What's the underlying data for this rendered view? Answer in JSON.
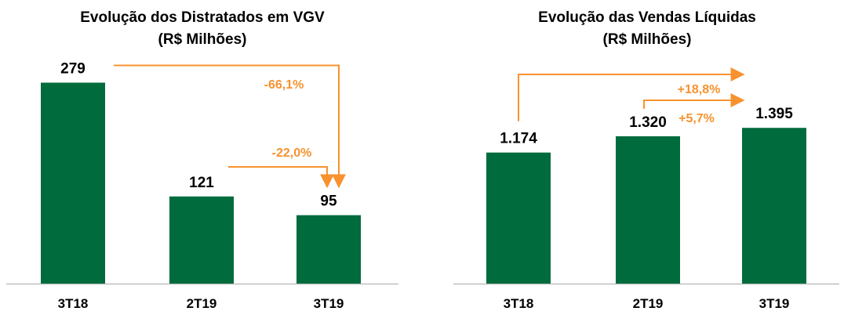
{
  "colors": {
    "bar": "#006b3c",
    "arrow": "#f7922f",
    "axis": "#bfbfbf",
    "text": "#000000"
  },
  "chart_data": [
    {
      "type": "bar",
      "title_lines": [
        "Evolução dos Distratados em VGV",
        "(R$ Milhões)"
      ],
      "categories": [
        "3T18",
        "2T19",
        "3T19"
      ],
      "values": [
        279,
        121,
        95
      ],
      "value_labels": [
        "279",
        "121",
        "95"
      ],
      "ylim": [
        0,
        310
      ],
      "grid": false,
      "legend": "none",
      "annotations": [
        {
          "from": "3T18",
          "to": "3T19",
          "label": "-66,1%"
        },
        {
          "from": "2T19",
          "to": "3T19",
          "label": "-22,0%"
        }
      ]
    },
    {
      "type": "bar",
      "title_lines": [
        "Evolução das Vendas Líquidas",
        "(R$ Milhões)"
      ],
      "categories": [
        "3T18",
        "2T19",
        "3T19"
      ],
      "values": [
        1174,
        1320,
        1395
      ],
      "value_labels": [
        "1.174",
        "1.320",
        "1.395"
      ],
      "ylim": [
        0,
        2000
      ],
      "grid": false,
      "legend": "none",
      "annotations": [
        {
          "from": "3T18",
          "to": "3T19",
          "label": "+18,8%"
        },
        {
          "from": "2T19",
          "to": "3T19",
          "label": "+5,7%"
        }
      ]
    }
  ]
}
